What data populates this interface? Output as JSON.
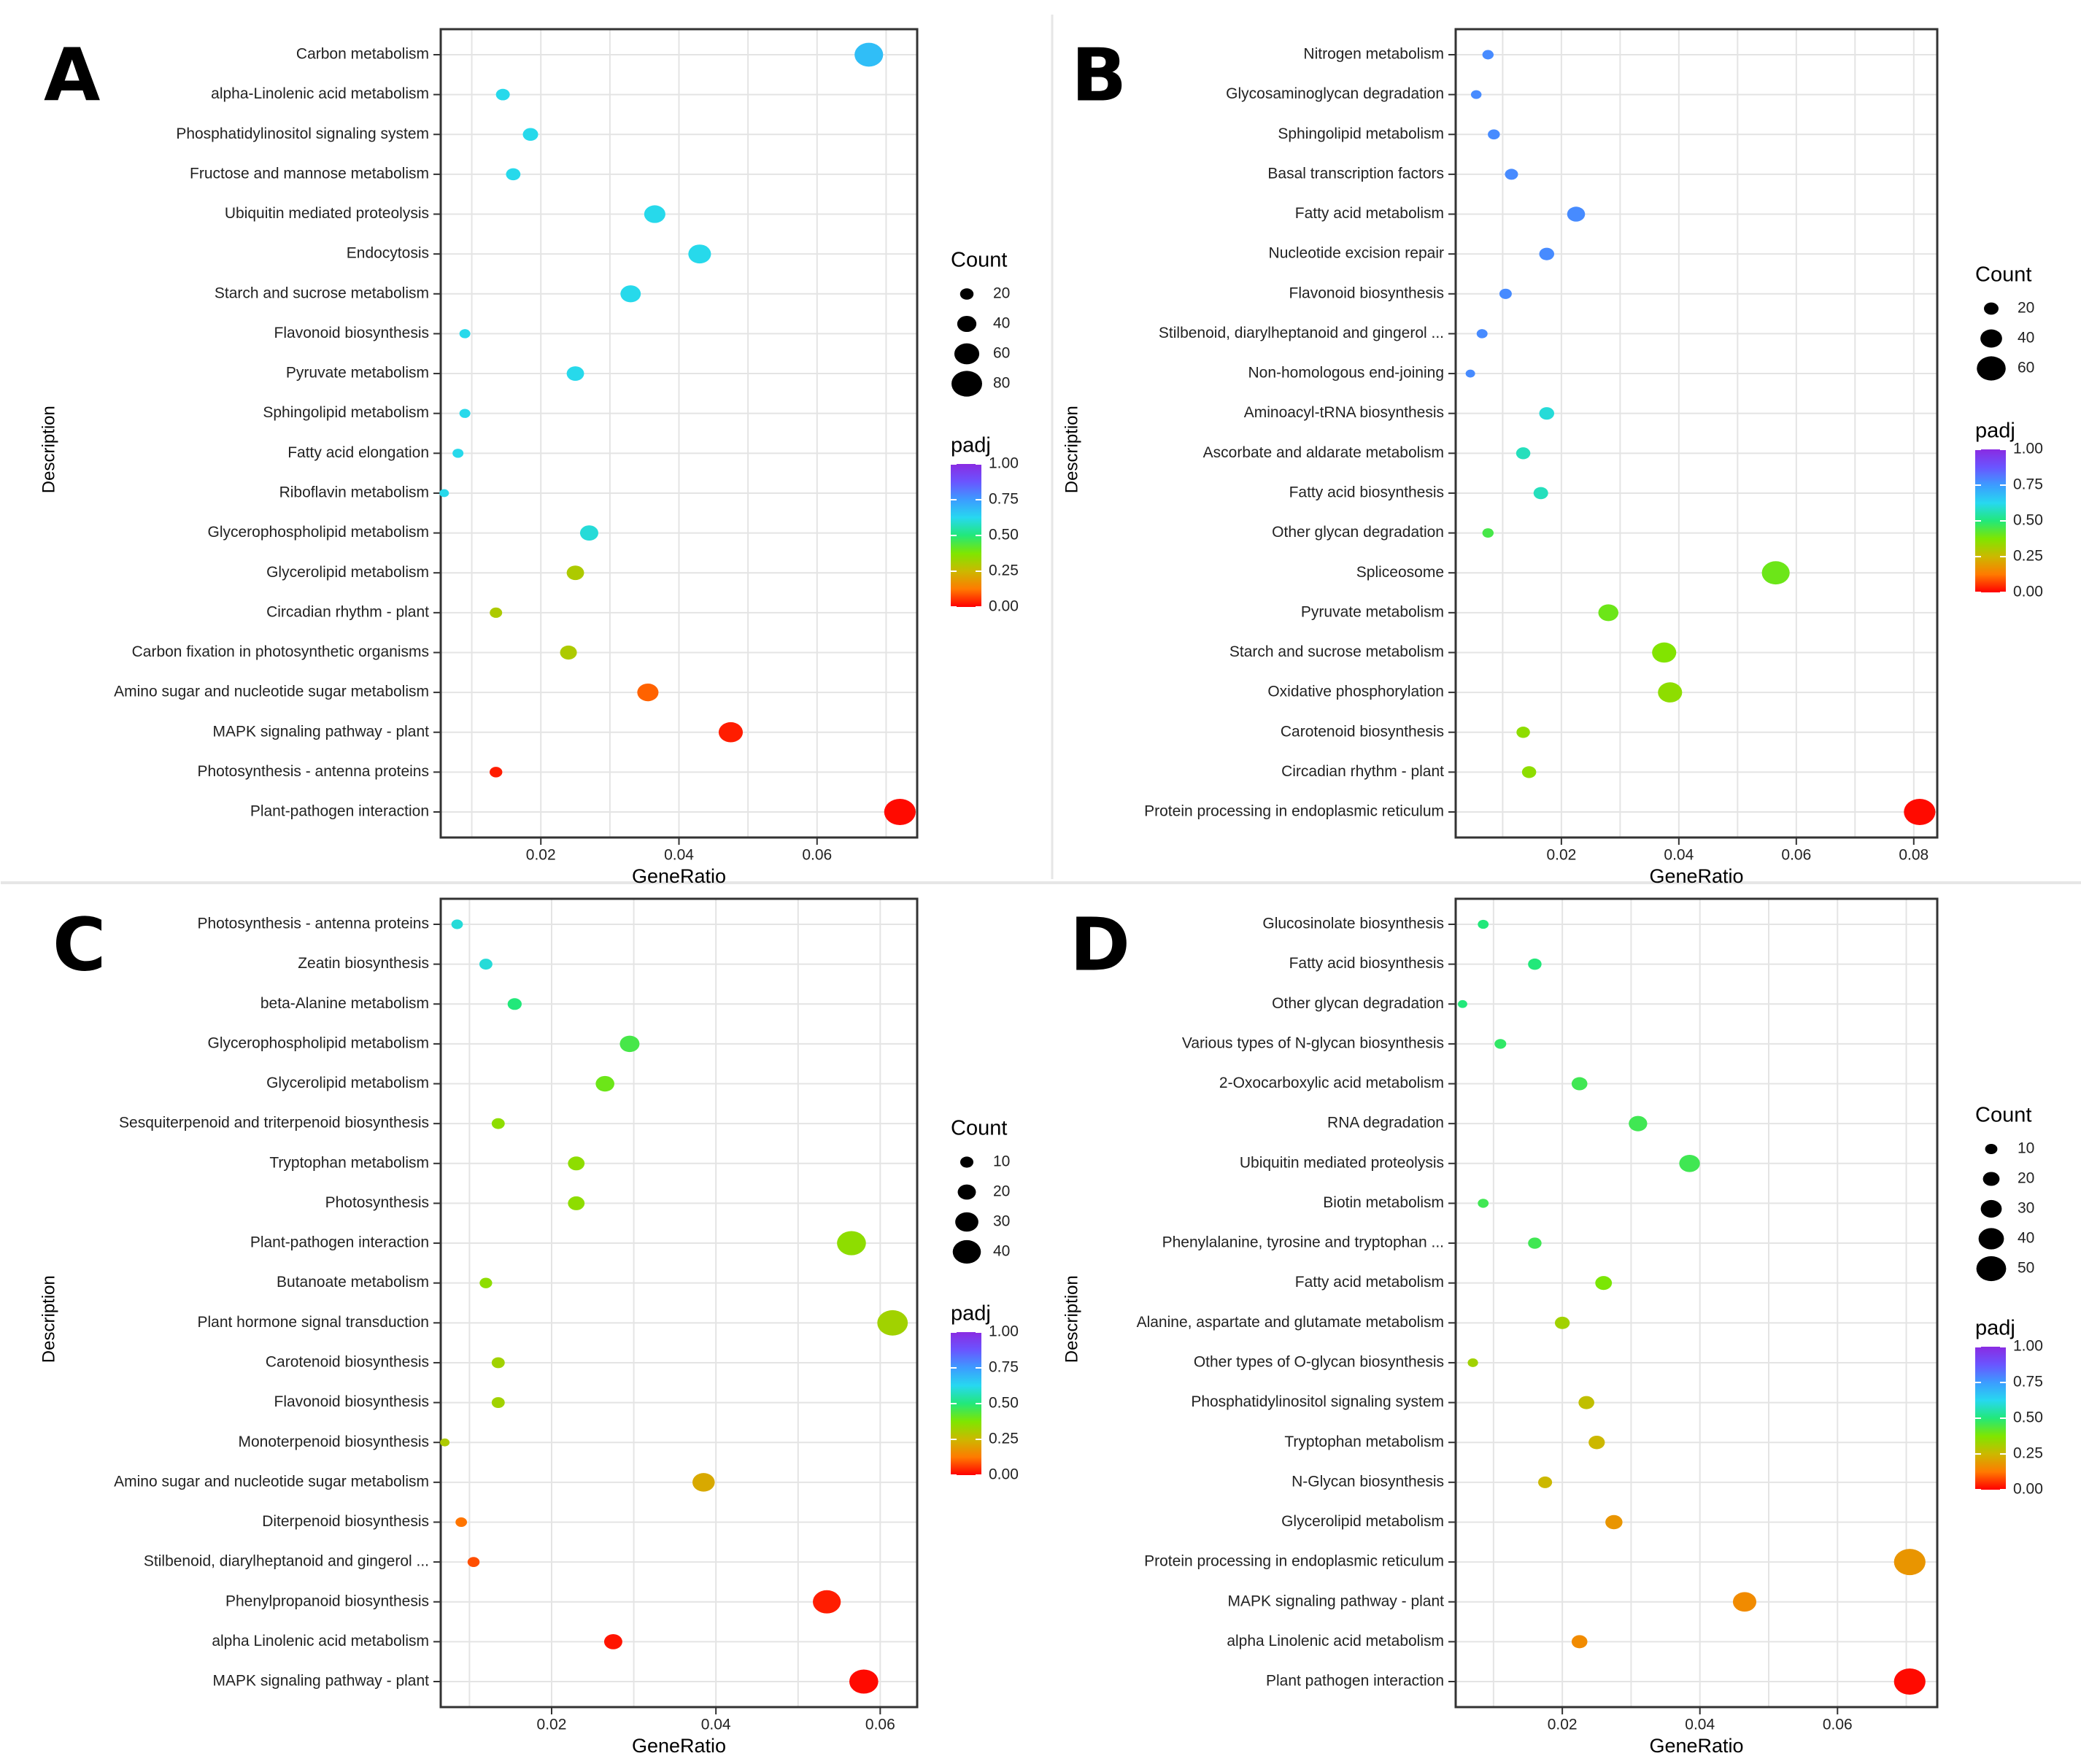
{
  "colors": {
    "scale": [
      "#ff0000",
      "#ff7a00",
      "#ccb800",
      "#7fe600",
      "#22e87a",
      "#27d8f0",
      "#3c9cff",
      "#6a55ff",
      "#8a2be2"
    ],
    "grid": "#e4e4e4",
    "panel_border": "#333333"
  },
  "chart_data": [
    {
      "panel": "A",
      "type": "scatter",
      "xlabel": "GeneRatio",
      "ylabel": "Description",
      "xlim": [
        0.0055,
        0.0745
      ],
      "xticks": [
        0.02,
        0.04,
        0.06
      ],
      "xtick_labels": [
        "0.02",
        "0.04",
        "0.06"
      ],
      "size_legend_title": "Count",
      "size_legend": [
        20,
        40,
        60,
        80
      ],
      "size_range": [
        5,
        80
      ],
      "color_legend_title": "padj",
      "color_legend_ticks": [
        "1.00",
        "0.75",
        "0.50",
        "0.25",
        "0.00"
      ],
      "categories": [
        "Carbon metabolism",
        "alpha-Linolenic acid metabolism",
        "Phosphatidylinositol signaling system",
        "Fructose and mannose metabolism",
        "Ubiquitin mediated proteolysis",
        "Endocytosis",
        "Starch and sucrose metabolism",
        "Flavonoid biosynthesis",
        "Pyruvate metabolism",
        "Sphingolipid metabolism",
        "Fatty acid elongation",
        "Riboflavin metabolism",
        "Glycerophospholipid metabolism",
        "Glycerolipid metabolism",
        "Circadian rhythm - plant",
        "Carbon fixation in photosynthetic organisms",
        "Amino sugar and nucleotide sugar metabolism",
        "MAPK signaling pathway - plant",
        "Photosynthesis - antenna proteins",
        "Plant-pathogen interaction"
      ],
      "x": [
        0.0675,
        0.0145,
        0.0185,
        0.016,
        0.0365,
        0.043,
        0.033,
        0.009,
        0.025,
        0.009,
        0.008,
        0.006,
        0.027,
        0.025,
        0.0135,
        0.024,
        0.0355,
        0.0475,
        0.0135,
        0.072
      ],
      "count": [
        70,
        20,
        25,
        22,
        45,
        50,
        42,
        10,
        32,
        10,
        10,
        5,
        35,
        32,
        15,
        30,
        45,
        55,
        16,
        80
      ],
      "padj": [
        0.68,
        0.62,
        0.62,
        0.62,
        0.62,
        0.62,
        0.62,
        0.62,
        0.62,
        0.62,
        0.62,
        0.62,
        0.6,
        0.3,
        0.3,
        0.3,
        0.1,
        0.03,
        0.03,
        0.01
      ]
    },
    {
      "panel": "B",
      "type": "scatter",
      "xlabel": "GeneRatio",
      "ylabel": "Description",
      "xlim": [
        0.002,
        0.084
      ],
      "xticks": [
        0.02,
        0.04,
        0.06,
        0.08
      ],
      "xtick_labels": [
        "0.02",
        "0.04",
        "0.06",
        "0.08"
      ],
      "size_legend_title": "Count",
      "size_legend": [
        20,
        40,
        60
      ],
      "size_range": [
        5,
        65
      ],
      "color_legend_title": "padj",
      "color_legend_ticks": [
        "1.00",
        "0.75",
        "0.50",
        "0.25",
        "0.00"
      ],
      "categories": [
        "Nitrogen metabolism",
        "Glycosaminoglycan degradation",
        "Sphingolipid metabolism",
        "Basal transcription factors",
        "Fatty acid metabolism",
        "Nucleotide excision repair",
        "Flavonoid biosynthesis",
        "Stilbenoid, diarylheptanoid and gingerol ...",
        "Non-homologous end-joining",
        "Aminoacyl-tRNA biosynthesis",
        "Ascorbate and aldarate metabolism",
        "Fatty acid biosynthesis",
        "Other glycan degradation",
        "Spliceosome",
        "Pyruvate metabolism",
        "Starch and sucrose metabolism",
        "Oxidative phosphorylation",
        "Carotenoid biosynthesis",
        "Circadian rhythm - plant",
        "Protein processing in endoplasmic reticulum"
      ],
      "x": [
        0.0075,
        0.0055,
        0.0085,
        0.0115,
        0.0225,
        0.0175,
        0.0105,
        0.0065,
        0.0045,
        0.0175,
        0.0135,
        0.0165,
        0.0075,
        0.0565,
        0.028,
        0.0375,
        0.0385,
        0.0135,
        0.0145,
        0.081
      ],
      "count": [
        10,
        8,
        12,
        15,
        28,
        20,
        13,
        9,
        5,
        20,
        18,
        19,
        10,
        55,
        34,
        45,
        45,
        16,
        18,
        65
      ],
      "padj": [
        0.78,
        0.78,
        0.78,
        0.78,
        0.78,
        0.78,
        0.78,
        0.78,
        0.78,
        0.6,
        0.57,
        0.57,
        0.45,
        0.4,
        0.4,
        0.37,
        0.35,
        0.35,
        0.35,
        0.01
      ]
    },
    {
      "panel": "C",
      "type": "scatter",
      "xlabel": "GeneRatio",
      "ylabel": "Description",
      "xlim": [
        0.0065,
        0.0645
      ],
      "xticks": [
        0.02,
        0.04,
        0.06
      ],
      "xtick_labels": [
        "0.02",
        "0.04",
        "0.06"
      ],
      "size_legend_title": "Count",
      "size_legend": [
        10,
        20,
        30,
        40
      ],
      "size_range": [
        2,
        45
      ],
      "color_legend_title": "padj",
      "color_legend_ticks": [
        "1.00",
        "0.75",
        "0.50",
        "0.25",
        "0.00"
      ],
      "categories": [
        "Photosynthesis - antenna proteins",
        "Zeatin biosynthesis",
        "beta-Alanine metabolism",
        "Glycerophospholipid metabolism",
        "Glycerolipid metabolism",
        "Sesquiterpenoid and triterpenoid biosynthesis",
        "Tryptophan metabolism",
        "Photosynthesis",
        "Plant-pathogen interaction",
        "Butanoate metabolism",
        "Plant hormone signal transduction",
        "Carotenoid biosynthesis",
        "Flavonoid biosynthesis",
        "Monoterpenoid biosynthesis",
        "Amino sugar and nucleotide sugar metabolism",
        "Diterpenoid biosynthesis",
        "Stilbenoid, diarylheptanoid and gingerol ...",
        "Phenylpropanoid biosynthesis",
        "alpha Linolenic acid metabolism",
        "MAPK signaling pathway - plant"
      ],
      "x": [
        0.0085,
        0.012,
        0.0155,
        0.0295,
        0.0265,
        0.0135,
        0.023,
        0.023,
        0.0565,
        0.012,
        0.0615,
        0.0135,
        0.0135,
        0.007,
        0.0385,
        0.009,
        0.0105,
        0.0535,
        0.0275,
        0.058
      ],
      "count": [
        6,
        9,
        11,
        22,
        20,
        9,
        16,
        16,
        40,
        8,
        43,
        9,
        9,
        2,
        27,
        6,
        7,
        38,
        19,
        40
      ],
      "padj": [
        0.6,
        0.6,
        0.5,
        0.45,
        0.4,
        0.35,
        0.35,
        0.35,
        0.35,
        0.35,
        0.32,
        0.32,
        0.32,
        0.3,
        0.22,
        0.12,
        0.08,
        0.03,
        0.02,
        0.01
      ]
    },
    {
      "panel": "D",
      "type": "scatter",
      "xlabel": "GeneRatio",
      "ylabel": "Description",
      "xlim": [
        0.0045,
        0.0745
      ],
      "xticks": [
        0.02,
        0.04,
        0.06
      ],
      "xtick_labels": [
        "0.02",
        "0.04",
        "0.06"
      ],
      "size_legend_title": "Count",
      "size_legend": [
        10,
        20,
        30,
        40,
        50
      ],
      "size_range": [
        3,
        52
      ],
      "color_legend_title": "padj",
      "color_legend_ticks": [
        "1.00",
        "0.75",
        "0.50",
        "0.25",
        "0.00"
      ],
      "categories": [
        "Glucosinolate biosynthesis",
        "Fatty acid biosynthesis",
        "Other glycan degradation",
        "Various types of N-glycan biosynthesis",
        "2-Oxocarboxylic acid metabolism",
        "RNA degradation",
        "Ubiquitin mediated proteolysis",
        "Biotin metabolism",
        "Phenylalanine, tyrosine and tryptophan ...",
        "Fatty acid metabolism",
        "Alanine, aspartate and glutamate metabolism",
        "Other types of O-glycan biosynthesis",
        "Phosphatidylinositol signaling system",
        "Tryptophan metabolism",
        "N-Glycan biosynthesis",
        "Glycerolipid metabolism",
        "Protein processing in endoplasmic reticulum",
        "MAPK signaling pathway - plant",
        "alpha Linolenic acid metabolism",
        "Plant pathogen interaction"
      ],
      "x": [
        0.0085,
        0.016,
        0.0055,
        0.011,
        0.0225,
        0.031,
        0.0385,
        0.0085,
        0.016,
        0.026,
        0.02,
        0.007,
        0.0235,
        0.025,
        0.0175,
        0.0275,
        0.0705,
        0.0465,
        0.0225,
        0.0705
      ],
      "count": [
        6,
        12,
        3,
        8,
        17,
        23,
        28,
        6,
        12,
        19,
        15,
        5,
        17,
        18,
        13,
        20,
        52,
        34,
        17,
        52
      ],
      "padj": [
        0.5,
        0.5,
        0.5,
        0.48,
        0.46,
        0.46,
        0.46,
        0.46,
        0.46,
        0.38,
        0.32,
        0.32,
        0.27,
        0.25,
        0.25,
        0.18,
        0.18,
        0.16,
        0.16,
        0.01
      ]
    }
  ]
}
